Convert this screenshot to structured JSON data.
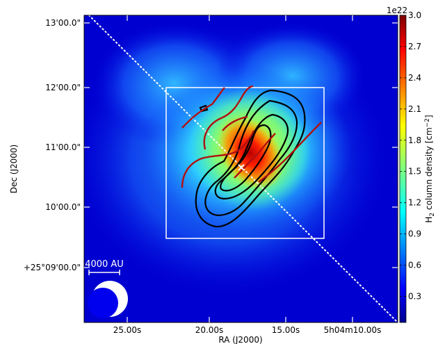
{
  "chart_data": {
    "type": "heatmap",
    "title": "",
    "xlabel": "RA (J2000)",
    "ylabel": "Dec (J2000)",
    "x_ticks": [
      "25.00s",
      "20.00s",
      "15.00s",
      "5h04m10.00s"
    ],
    "y_ticks": [
      "13'00.0\"",
      "12'00.0\"",
      "11'00.0\"",
      "10'00.0\"",
      "+25°09'00.0\""
    ],
    "colorbar": {
      "label_pre": "H",
      "label_sub": "2",
      "label_mid": " column density [cm",
      "label_sup": "−2",
      "label_post": "]",
      "scale_note": "1e22",
      "range": [
        0.05,
        3.0
      ],
      "ticks": [
        "0.3",
        "0.6",
        "0.9",
        "1.2",
        "1.5",
        "1.8",
        "2.1",
        "2.4",
        "2.7",
        "3.0"
      ],
      "colormap": "jet"
    },
    "scale_bar": "4000 AU",
    "marker": "×",
    "contour_colors": {
      "black": "#000000",
      "red": "#b01010",
      "box": "#ffffff"
    }
  }
}
